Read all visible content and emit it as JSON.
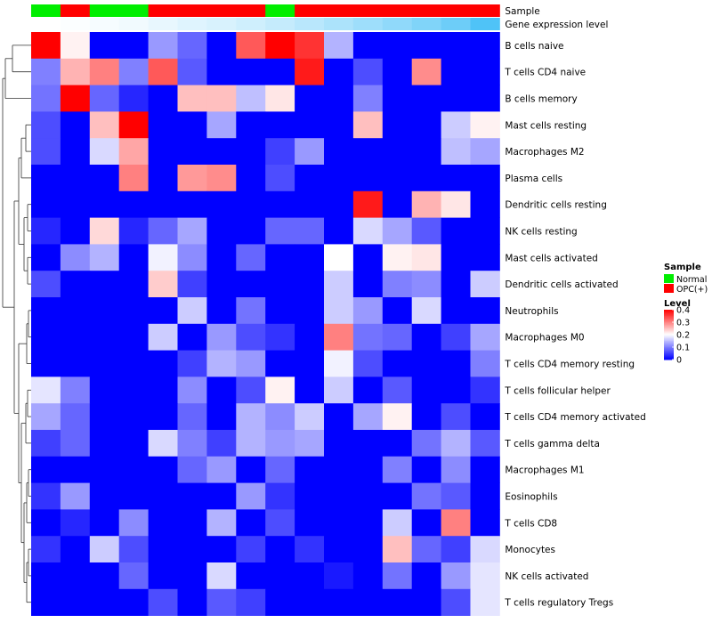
{
  "chart_data": {
    "type": "heatmap",
    "annotations": {
      "sample": {
        "label": "Sample",
        "values": [
          "Normal",
          "OPC(+)",
          "Normal",
          "Normal",
          "OPC(+)",
          "OPC(+)",
          "OPC(+)",
          "OPC(+)",
          "Normal",
          "OPC(+)",
          "OPC(+)",
          "OPC(+)",
          "OPC(+)",
          "OPC(+)",
          "OPC(+)",
          "OPC(+)"
        ]
      },
      "gene_expression": {
        "label": "Gene expression level",
        "values": [
          0.0,
          0.02,
          0.05,
          0.08,
          0.13,
          0.18,
          0.22,
          0.27,
          0.33,
          0.4,
          0.47,
          0.55,
          0.63,
          0.72,
          0.83,
          1.0
        ]
      }
    },
    "rows": [
      "B cells naive",
      "T cells CD4 naive",
      "B cells memory",
      "Mast cells resting",
      "Macrophages M2",
      "Plasma cells",
      "Dendritic cells resting",
      "NK cells resting",
      "Mast cells activated",
      "Dendritic cells activated",
      "Neutrophils",
      "Macrophages M0",
      "T cells CD4 memory resting",
      "T cells follicular helper",
      "T cells CD4 memory activated",
      "T cells gamma delta",
      "Macrophages M1",
      "Eosinophils",
      "T cells CD8",
      "Monocytes",
      "NK cells activated",
      "T cells regulatory  Tregs"
    ],
    "values": [
      [
        0.4,
        0.21,
        0,
        0,
        0.12,
        0.08,
        0,
        0.33,
        0.4,
        0.36,
        0.14,
        0,
        0,
        0,
        0,
        0
      ],
      [
        0.1,
        0.26,
        0.3,
        0.1,
        0.33,
        0.07,
        0,
        0,
        0,
        0.38,
        0,
        0.06,
        0,
        0.29,
        0,
        0
      ],
      [
        0.09,
        0.4,
        0.08,
        0.03,
        0,
        0.25,
        0.25,
        0.15,
        0.22,
        0,
        0,
        0.1,
        0,
        0,
        0,
        0
      ],
      [
        0.06,
        0,
        0.25,
        0.4,
        0,
        0,
        0.13,
        0,
        0,
        0,
        0,
        0.25,
        0,
        0,
        0.16,
        0.21
      ],
      [
        0.06,
        0,
        0.17,
        0.27,
        0,
        0,
        0,
        0,
        0.05,
        0.12,
        0,
        0,
        0,
        0,
        0.15,
        0.13
      ],
      [
        0,
        0,
        0,
        0.3,
        0,
        0.28,
        0.29,
        0,
        0.06,
        0,
        0,
        0,
        0,
        0,
        0,
        0
      ],
      [
        0,
        0,
        0,
        0,
        0,
        0,
        0,
        0,
        0,
        0,
        0,
        0.38,
        0,
        0.26,
        0.22,
        0
      ],
      [
        0.03,
        0,
        0.23,
        0.03,
        0.08,
        0.13,
        0,
        0,
        0.08,
        0.08,
        0,
        0.17,
        0.13,
        0.07,
        0,
        0
      ],
      [
        0,
        0.11,
        0.14,
        0,
        0.19,
        0.11,
        0,
        0.08,
        0,
        0,
        0.2,
        0,
        0.21,
        0.22,
        0,
        0
      ],
      [
        0.06,
        0,
        0,
        0,
        0.24,
        0.05,
        0,
        0,
        0,
        0,
        0.16,
        0,
        0.1,
        0.11,
        0,
        0.16
      ],
      [
        0,
        0,
        0,
        0,
        0,
        0.16,
        0,
        0.09,
        0,
        0,
        0.16,
        0.12,
        0,
        0.17,
        0,
        0
      ],
      [
        0,
        0,
        0,
        0,
        0.16,
        0,
        0.12,
        0.06,
        0.04,
        0,
        0.3,
        0.09,
        0.08,
        0,
        0.05,
        0.13
      ],
      [
        0,
        0,
        0,
        0,
        0,
        0.05,
        0.14,
        0.12,
        0,
        0,
        0.19,
        0.06,
        0,
        0,
        0,
        0.1
      ],
      [
        0.18,
        0.1,
        0,
        0,
        0,
        0.11,
        0,
        0.06,
        0.21,
        0,
        0.16,
        0,
        0.07,
        0,
        0,
        0.04
      ],
      [
        0.13,
        0.08,
        0,
        0,
        0,
        0.08,
        0,
        0.14,
        0.11,
        0.16,
        0,
        0.13,
        0.21,
        0,
        0.06,
        0
      ],
      [
        0.05,
        0.08,
        0,
        0,
        0.17,
        0.1,
        0.05,
        0.14,
        0.12,
        0.13,
        0,
        0,
        0,
        0.09,
        0.14,
        0.07
      ],
      [
        0,
        0,
        0,
        0,
        0,
        0.08,
        0.12,
        0,
        0.08,
        0,
        0,
        0,
        0.1,
        0,
        0.11,
        0
      ],
      [
        0.04,
        0.12,
        0,
        0,
        0,
        0,
        0,
        0.12,
        0.04,
        0,
        0,
        0,
        0,
        0.09,
        0.07,
        0
      ],
      [
        0,
        0.03,
        0,
        0.11,
        0,
        0,
        0.14,
        0,
        0.06,
        0,
        0,
        0,
        0.16,
        0,
        0.3,
        0
      ],
      [
        0.04,
        0,
        0.16,
        0.06,
        0,
        0,
        0,
        0.05,
        0,
        0.04,
        0,
        0,
        0.25,
        0.08,
        0.05,
        0.17
      ],
      [
        0,
        0,
        0,
        0.08,
        0,
        0,
        0.17,
        0,
        0,
        0,
        0.02,
        0,
        0.09,
        0,
        0.12,
        0.18
      ],
      [
        0,
        0,
        0,
        0,
        0.06,
        0,
        0.07,
        0.05,
        0,
        0,
        0,
        0,
        0,
        0,
        0.06,
        0.18
      ]
    ],
    "legend": {
      "sample_title": "Sample",
      "sample_entries": [
        {
          "label": "Normal",
          "color": "#00ee00"
        },
        {
          "label": "OPC(+)",
          "color": "#ff0000"
        }
      ],
      "level_title": "Level",
      "level_ticks": [
        {
          "label": "0.4",
          "value": 0.4
        },
        {
          "label": "0.3",
          "value": 0.3
        },
        {
          "label": "0.2",
          "value": 0.2
        },
        {
          "label": "0.1",
          "value": 0.1
        },
        {
          "label": "0",
          "value": 0
        }
      ],
      "placement": "right"
    },
    "scale": {
      "min": 0,
      "mid": 0.2,
      "max": 0.4,
      "low_color": "#0000ff",
      "mid_color": "#ffffff",
      "high_color": "#ff0000"
    },
    "gene_expression_colors": {
      "low": "#ffffff",
      "high": "#4fc3f7"
    }
  }
}
